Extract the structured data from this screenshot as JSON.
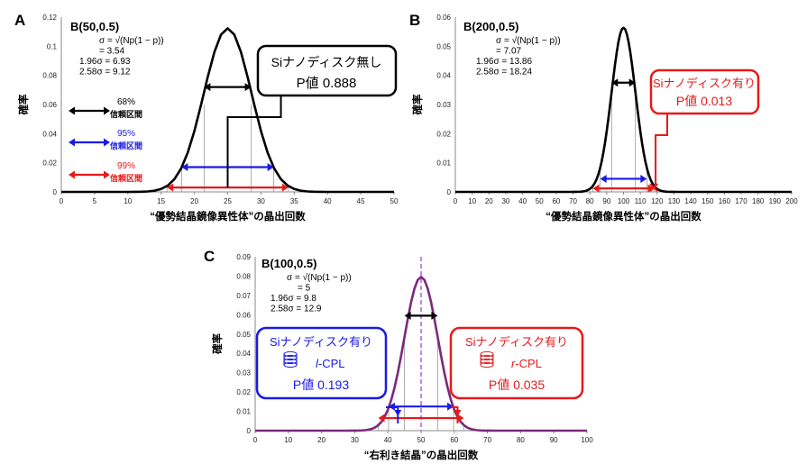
{
  "chart_data": [
    {
      "panel": "A",
      "type": "line",
      "title": "B(50,0.5)",
      "xlabel": "“優勢結晶鏡像異性体”の晶出回数",
      "ylabel": "確率",
      "xlim": [
        0,
        50
      ],
      "ylim": [
        0,
        0.12
      ],
      "xticks": [
        0,
        5,
        10,
        15,
        20,
        25,
        30,
        35,
        40,
        45,
        50
      ],
      "yticks": [
        0,
        0.02,
        0.04,
        0.06,
        0.08,
        0.1,
        0.12
      ],
      "ytick_labels": [
        "0",
        "0.02",
        "0.04",
        "0.06",
        "0.08",
        "0.1",
        "0.12"
      ],
      "grid": false,
      "series": [
        {
          "n": 50,
          "p": 0.5,
          "color": "#000000"
        }
      ],
      "stats": [
        "σ = √(Np(1 − p))",
        "= 3.54",
        "1.96σ = 6.93",
        "2.58σ = 9.12"
      ],
      "legend": [
        {
          "label": "68%",
          "sublabel": "信頼区間",
          "color": "#000000"
        },
        {
          "label": "95%",
          "sublabel": "信頼区間",
          "color": "#1a1ae6"
        },
        {
          "label": "99%",
          "sublabel": "信頼区間",
          "color": "#e61a1a"
        }
      ],
      "intervals": [
        {
          "from": 21.46,
          "to": 28.54,
          "y": 0.072,
          "color": "#000000"
        },
        {
          "from": 18.07,
          "to": 31.93,
          "y": 0.017,
          "color": "#1a1ae6"
        },
        {
          "from": 15.88,
          "to": 34.12,
          "y": 0.003,
          "color": "#e61a1a"
        }
      ],
      "callout": {
        "line1": "Siナノディスク無し",
        "line2": "P値 0.888",
        "color": "#000000",
        "pointer_x": 25
      }
    },
    {
      "panel": "B",
      "type": "line",
      "title": "B(200,0.5)",
      "xlabel": "“優勢結晶鏡像異性体”の晶出回数",
      "ylabel": "確率",
      "xlim": [
        0,
        200
      ],
      "ylim": [
        0,
        0.06
      ],
      "xticks": [
        0,
        10,
        20,
        30,
        40,
        50,
        60,
        70,
        80,
        90,
        100,
        110,
        120,
        130,
        140,
        150,
        160,
        170,
        180,
        190,
        200
      ],
      "yticks": [
        0,
        0.01,
        0.02,
        0.03,
        0.04,
        0.05,
        0.06
      ],
      "ytick_labels": [
        "0",
        "0.01",
        "0.02",
        "0.03",
        "0.04",
        "0.05",
        "0.06"
      ],
      "grid": false,
      "series": [
        {
          "n": 200,
          "p": 0.5,
          "color": "#000000"
        }
      ],
      "stats": [
        "σ = √(Np(1 − p))",
        "= 7.07",
        "1.96σ = 13.86",
        "2.58σ = 18.24"
      ],
      "intervals": [
        {
          "from": 92.93,
          "to": 107.07,
          "y": 0.0375,
          "color": "#000000"
        },
        {
          "from": 86.14,
          "to": 113.86,
          "y": 0.0045,
          "color": "#1a1ae6"
        },
        {
          "from": 81.76,
          "to": 118.24,
          "y": 0.0012,
          "color": "#e61a1a"
        }
      ],
      "marker": {
        "x": 118,
        "y": 0.0015,
        "color": "#e61a1a"
      },
      "callout": {
        "line1": "Siナノディスク有り",
        "line2": "P値 0.013",
        "color": "#e61a1a",
        "pointer_x": 118
      }
    },
    {
      "panel": "C",
      "type": "line",
      "title": "B(100,0.5)",
      "xlabel": "“右利き結晶”の晶出回数",
      "ylabel": "確率",
      "xlim": [
        0,
        100
      ],
      "ylim": [
        0,
        0.09
      ],
      "xticks": [
        0,
        10,
        20,
        30,
        40,
        50,
        60,
        70,
        80,
        90,
        100
      ],
      "yticks": [
        0,
        0.01,
        0.02,
        0.03,
        0.04,
        0.05,
        0.06,
        0.07,
        0.08,
        0.09
      ],
      "ytick_labels": [
        "0",
        "0.01",
        "0.02",
        "0.03",
        "0.04",
        "0.05",
        "0.06",
        "0.07",
        "0.08",
        "0.09"
      ],
      "grid": false,
      "series": [
        {
          "n": 100,
          "p": 0.5,
          "color": "#7a2a7a"
        }
      ],
      "stats": [
        "σ = √(Np(1 − p))",
        "= 5",
        "1.96σ = 9.8",
        "2.58σ = 12.9"
      ],
      "mean_line": {
        "x": 50,
        "color": "#9a4ad6"
      },
      "intervals": [
        {
          "from": 45,
          "to": 55,
          "y": 0.0595,
          "color": "#000000"
        },
        {
          "from": 40.2,
          "to": 59.8,
          "y": 0.0125,
          "color": "#1a1ae6"
        },
        {
          "from": 37.1,
          "to": 62.9,
          "y": 0.0065,
          "color": "#e61a1a"
        }
      ],
      "callouts": [
        {
          "line1": "Siナノディスク有り",
          "mode": "l",
          "mode_suffix": "-CPL",
          "line3": "P値  0.193",
          "color": "#1a1ae6",
          "pointer_x": 43
        },
        {
          "line1": "Siナノディスク有り",
          "mode": "r",
          "mode_suffix": "-CPL",
          "line3": "P値  0.035",
          "color": "#e61a1a",
          "pointer_x": 61
        }
      ]
    }
  ]
}
